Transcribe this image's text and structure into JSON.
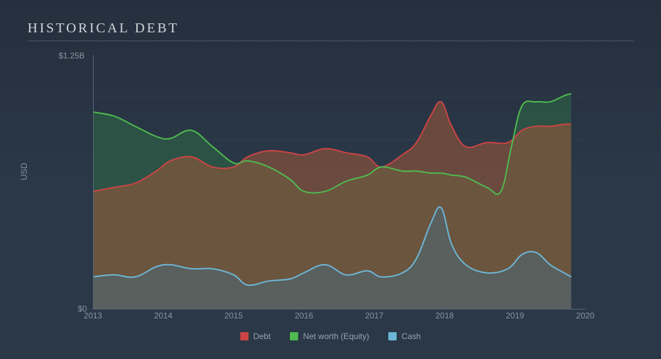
{
  "title": "HISTORICAL DEBT",
  "type": "area",
  "background_color": "#2a3847",
  "title_color": "#cfd5db",
  "title_fontsize": 20,
  "title_letter_spacing": 3,
  "axis_text_color": "#8a94a1",
  "axis_fontsize": 12,
  "underline_color": "#4a5563",
  "yaxis": {
    "label": "USD",
    "min_label": "$0",
    "max_label": "$1.25B",
    "min": 0,
    "max": 1.25
  },
  "xaxis": {
    "min": 2013,
    "max": 2020,
    "ticks": [
      2013,
      2014,
      2015,
      2016,
      2017,
      2018,
      2019,
      2020
    ]
  },
  "grid": {
    "y_lines": 6,
    "x_lines": 8,
    "color": "#39475a",
    "axis_color": "#5a6678"
  },
  "series": [
    {
      "name": "Cash",
      "legend": "Cash",
      "stroke": "#6db6d6",
      "fill": "#4a6a78",
      "fill_opacity": 0.55,
      "stroke_width": 2,
      "hatch": false,
      "points": [
        {
          "x": 2013.0,
          "y": 0.16
        },
        {
          "x": 2013.3,
          "y": 0.17
        },
        {
          "x": 2013.6,
          "y": 0.16
        },
        {
          "x": 2013.9,
          "y": 0.21
        },
        {
          "x": 2014.1,
          "y": 0.22
        },
        {
          "x": 2014.4,
          "y": 0.2
        },
        {
          "x": 2014.7,
          "y": 0.2
        },
        {
          "x": 2015.0,
          "y": 0.17
        },
        {
          "x": 2015.2,
          "y": 0.12
        },
        {
          "x": 2015.5,
          "y": 0.14
        },
        {
          "x": 2015.8,
          "y": 0.15
        },
        {
          "x": 2016.0,
          "y": 0.18
        },
        {
          "x": 2016.3,
          "y": 0.22
        },
        {
          "x": 2016.6,
          "y": 0.17
        },
        {
          "x": 2016.9,
          "y": 0.19
        },
        {
          "x": 2017.1,
          "y": 0.16
        },
        {
          "x": 2017.4,
          "y": 0.18
        },
        {
          "x": 2017.6,
          "y": 0.25
        },
        {
          "x": 2017.8,
          "y": 0.42
        },
        {
          "x": 2017.95,
          "y": 0.5
        },
        {
          "x": 2018.1,
          "y": 0.32
        },
        {
          "x": 2018.3,
          "y": 0.22
        },
        {
          "x": 2018.6,
          "y": 0.18
        },
        {
          "x": 2018.9,
          "y": 0.2
        },
        {
          "x": 2019.1,
          "y": 0.27
        },
        {
          "x": 2019.3,
          "y": 0.28
        },
        {
          "x": 2019.5,
          "y": 0.22
        },
        {
          "x": 2019.7,
          "y": 0.18
        },
        {
          "x": 2019.8,
          "y": 0.16
        }
      ]
    },
    {
      "name": "Debt",
      "legend": "Debt",
      "stroke": "#cc4444",
      "fill": "#a05a3a",
      "fill_opacity": 0.55,
      "stroke_width": 2,
      "hatch": true,
      "hatch_color": "#6a4030",
      "points": [
        {
          "x": 2013.0,
          "y": 0.58
        },
        {
          "x": 2013.3,
          "y": 0.6
        },
        {
          "x": 2013.6,
          "y": 0.62
        },
        {
          "x": 2013.9,
          "y": 0.68
        },
        {
          "x": 2014.1,
          "y": 0.73
        },
        {
          "x": 2014.4,
          "y": 0.75
        },
        {
          "x": 2014.7,
          "y": 0.7
        },
        {
          "x": 2015.0,
          "y": 0.7
        },
        {
          "x": 2015.2,
          "y": 0.75
        },
        {
          "x": 2015.5,
          "y": 0.78
        },
        {
          "x": 2015.8,
          "y": 0.77
        },
        {
          "x": 2016.0,
          "y": 0.76
        },
        {
          "x": 2016.3,
          "y": 0.79
        },
        {
          "x": 2016.6,
          "y": 0.77
        },
        {
          "x": 2016.9,
          "y": 0.75
        },
        {
          "x": 2017.1,
          "y": 0.7
        },
        {
          "x": 2017.4,
          "y": 0.76
        },
        {
          "x": 2017.6,
          "y": 0.82
        },
        {
          "x": 2017.8,
          "y": 0.95
        },
        {
          "x": 2017.95,
          "y": 1.02
        },
        {
          "x": 2018.1,
          "y": 0.9
        },
        {
          "x": 2018.3,
          "y": 0.8
        },
        {
          "x": 2018.6,
          "y": 0.82
        },
        {
          "x": 2018.9,
          "y": 0.82
        },
        {
          "x": 2019.1,
          "y": 0.88
        },
        {
          "x": 2019.3,
          "y": 0.9
        },
        {
          "x": 2019.5,
          "y": 0.9
        },
        {
          "x": 2019.7,
          "y": 0.91
        },
        {
          "x": 2019.8,
          "y": 0.91
        }
      ]
    },
    {
      "name": "Net worth (Equity)",
      "legend": "Net worth (Equity)",
      "stroke": "#4fba4f",
      "fill": "#2e6a45",
      "fill_opacity": 0.55,
      "stroke_width": 2,
      "hatch": false,
      "points": [
        {
          "x": 2013.0,
          "y": 0.97
        },
        {
          "x": 2013.3,
          "y": 0.95
        },
        {
          "x": 2013.6,
          "y": 0.9
        },
        {
          "x": 2013.9,
          "y": 0.85
        },
        {
          "x": 2014.1,
          "y": 0.84
        },
        {
          "x": 2014.4,
          "y": 0.88
        },
        {
          "x": 2014.7,
          "y": 0.8
        },
        {
          "x": 2015.0,
          "y": 0.72
        },
        {
          "x": 2015.2,
          "y": 0.73
        },
        {
          "x": 2015.5,
          "y": 0.7
        },
        {
          "x": 2015.8,
          "y": 0.64
        },
        {
          "x": 2016.0,
          "y": 0.58
        },
        {
          "x": 2016.3,
          "y": 0.58
        },
        {
          "x": 2016.6,
          "y": 0.63
        },
        {
          "x": 2016.9,
          "y": 0.66
        },
        {
          "x": 2017.1,
          "y": 0.7
        },
        {
          "x": 2017.4,
          "y": 0.68
        },
        {
          "x": 2017.6,
          "y": 0.68
        },
        {
          "x": 2017.8,
          "y": 0.67
        },
        {
          "x": 2017.95,
          "y": 0.67
        },
        {
          "x": 2018.1,
          "y": 0.66
        },
        {
          "x": 2018.3,
          "y": 0.65
        },
        {
          "x": 2018.6,
          "y": 0.6
        },
        {
          "x": 2018.8,
          "y": 0.58
        },
        {
          "x": 2018.95,
          "y": 0.8
        },
        {
          "x": 2019.1,
          "y": 1.0
        },
        {
          "x": 2019.3,
          "y": 1.02
        },
        {
          "x": 2019.5,
          "y": 1.02
        },
        {
          "x": 2019.7,
          "y": 1.05
        },
        {
          "x": 2019.8,
          "y": 1.06
        }
      ]
    }
  ],
  "legend_order": [
    "Debt",
    "Net worth (Equity)",
    "Cash"
  ],
  "legend_colors": {
    "Debt": "#cc4444",
    "Net worth (Equity)": "#4fba4f",
    "Cash": "#6db6d6"
  }
}
